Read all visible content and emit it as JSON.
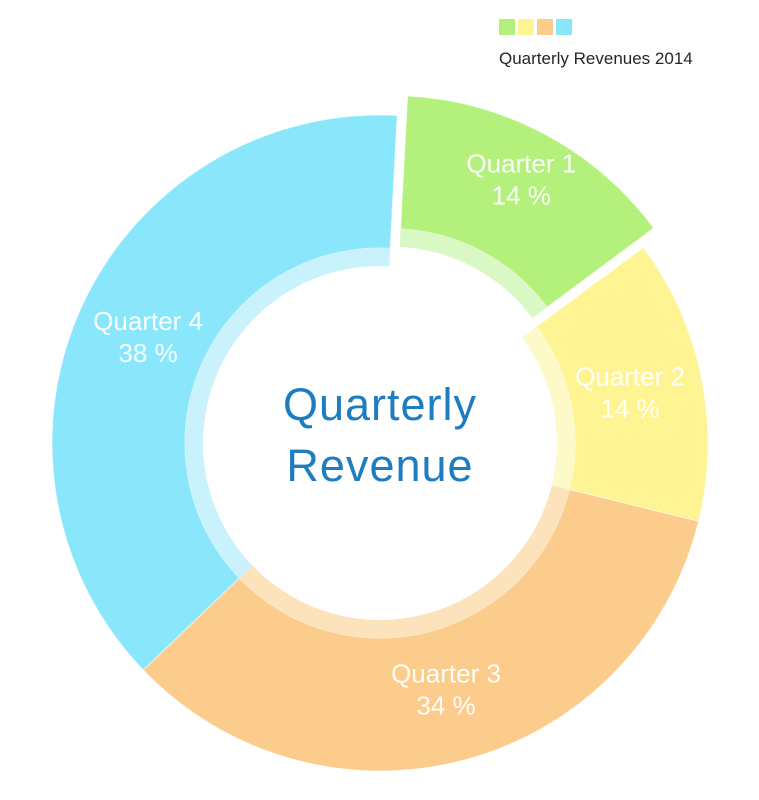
{
  "chart_data": {
    "type": "pie",
    "subtype": "donut",
    "title": "Quarterly Revenue",
    "title_lines": [
      "Quarterly",
      "Revenue"
    ],
    "legend": {
      "position": "top-right",
      "label": "Quarterly Revenues 2014"
    },
    "slices": [
      {
        "label": "Quarter 1",
        "value": 14,
        "value_label": "14 %",
        "color": "#b4f07c",
        "inner_color": "#daf8c3",
        "exploded": true
      },
      {
        "label": "Quarter 2",
        "value": 14,
        "value_label": "14 %",
        "color": "#fff493",
        "inner_color": "#fdf9c8",
        "exploded": false
      },
      {
        "label": "Quarter 3",
        "value": 34,
        "value_label": "34 %",
        "color": "#fbcc8c",
        "inner_color": "#fce3bc",
        "exploded": false
      },
      {
        "label": "Quarter 4",
        "value": 38,
        "value_label": "38 %",
        "color": "#8ae7fb",
        "inner_color": "#c9f2fd",
        "exploded": false
      }
    ],
    "colors": {
      "title_text": "#1e7cc0",
      "slice_label_text": "#ffffff",
      "legend_text": "#262626",
      "background": "#ffffff"
    },
    "layout": {
      "start_angle_deg": 3,
      "clockwise": true,
      "legend_top_right": true,
      "donut_hole": true
    }
  }
}
